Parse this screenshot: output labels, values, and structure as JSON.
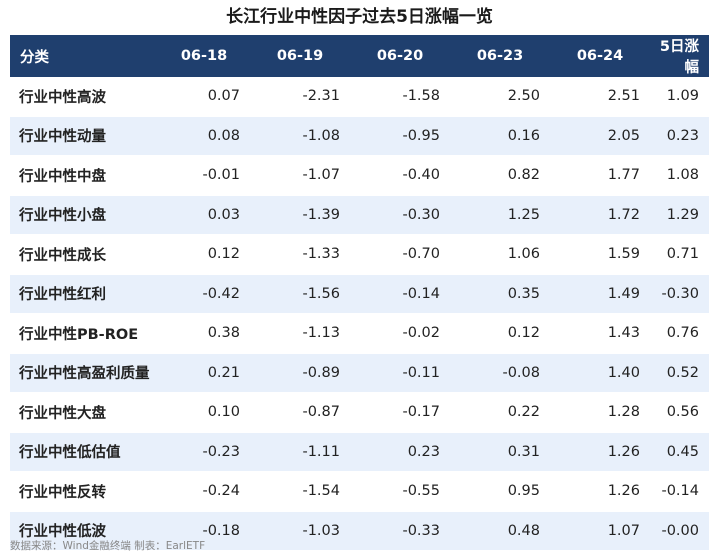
{
  "title": "长江行业中性因子过去5日涨幅一览",
  "table": {
    "headers": [
      "分类",
      "06-18",
      "06-19",
      "06-20",
      "06-23",
      "06-24",
      "5日涨幅"
    ],
    "rows": [
      [
        "行业中性高波",
        "0.07",
        "-2.31",
        "-1.58",
        "2.50",
        "2.51",
        "1.09"
      ],
      [
        "行业中性动量",
        "0.08",
        "-1.08",
        "-0.95",
        "0.16",
        "2.05",
        "0.23"
      ],
      [
        "行业中性中盘",
        "-0.01",
        "-1.07",
        "-0.40",
        "0.82",
        "1.77",
        "1.08"
      ],
      [
        "行业中性小盘",
        "0.03",
        "-1.39",
        "-0.30",
        "1.25",
        "1.72",
        "1.29"
      ],
      [
        "行业中性成长",
        "0.12",
        "-1.33",
        "-0.70",
        "1.06",
        "1.59",
        "0.71"
      ],
      [
        "行业中性红利",
        "-0.42",
        "-1.56",
        "-0.14",
        "0.35",
        "1.49",
        "-0.30"
      ],
      [
        "行业中性PB-ROE",
        "0.38",
        "-1.13",
        "-0.02",
        "0.12",
        "1.43",
        "0.76"
      ],
      [
        "行业中性高盈利质量",
        "0.21",
        "-0.89",
        "-0.11",
        "-0.08",
        "1.40",
        "0.52"
      ],
      [
        "行业中性大盘",
        "0.10",
        "-0.87",
        "-0.17",
        "0.22",
        "1.28",
        "0.56"
      ],
      [
        "行业中性低估值",
        "-0.23",
        "-1.11",
        "0.23",
        "0.31",
        "1.26",
        "0.45"
      ],
      [
        "行业中性反转",
        "-0.24",
        "-1.54",
        "-0.55",
        "0.95",
        "1.26",
        "-0.14"
      ],
      [
        "行业中性低波",
        "-0.18",
        "-1.03",
        "-0.33",
        "0.48",
        "1.07",
        "-0.00"
      ]
    ]
  },
  "source": "数据来源：Wind金融终端 制表：EarlETF",
  "colors": {
    "header_bg": "#1f3f6e",
    "stripe": "#e8f0fb"
  }
}
